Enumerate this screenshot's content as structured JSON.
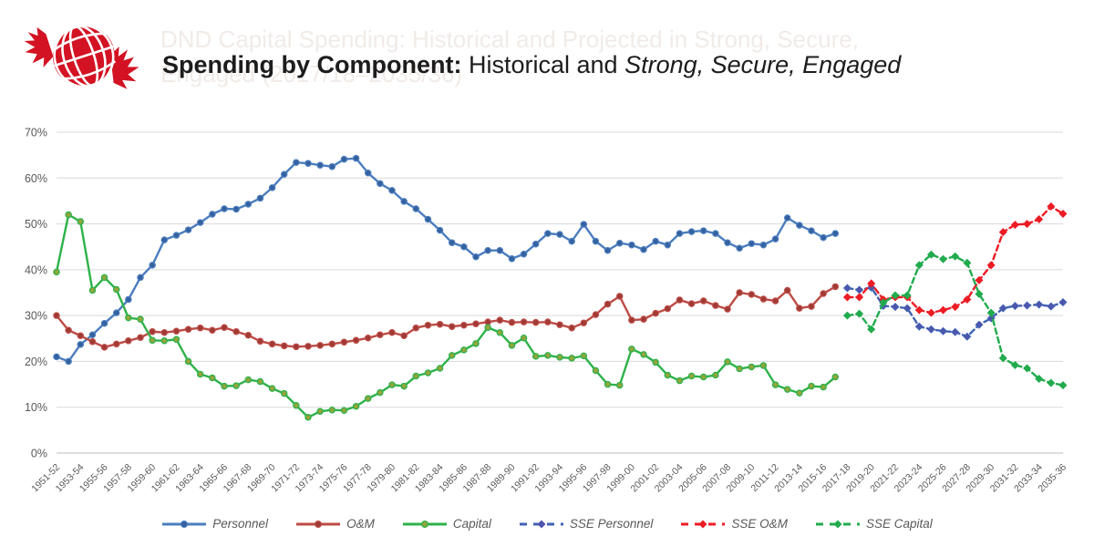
{
  "header": {
    "logo_name": "globe-maple-leaf-logo",
    "ghost_title_line1": "DND Capital Spending: Historical and Projected in Strong, Secure,",
    "ghost_title_line2": "Engaged (2017/18–2035/36)",
    "title_bold": "Spending by Component:",
    "title_regular": " Historical and ",
    "title_italic": "Strong, Secure, Engaged"
  },
  "chart_data": {
    "type": "line",
    "title": "Spending by Component: Historical and Strong, Secure, Engaged",
    "y_axis": {
      "min": 0,
      "max": 70,
      "step": 10,
      "grid": true,
      "tick_labels": [
        "0%",
        "10%",
        "20%",
        "30%",
        "40%",
        "50%",
        "60%",
        "70%"
      ]
    },
    "x_axis": {
      "total_points": 85,
      "points_per_tick": 2,
      "tick_labels": [
        "1951-52",
        "1953-54",
        "1955-56",
        "1957-58",
        "1959-60",
        "1961-62",
        "1963-64",
        "1965-66",
        "1967-68",
        "1969-70",
        "1971-72",
        "1973-74",
        "1975-76",
        "1977-78",
        "1979-80",
        "1981-82",
        "1983-84",
        "1985-86",
        "1987-88",
        "1989-90",
        "1991-92",
        "1993-94",
        "1995-96",
        "1997-98",
        "1999-00",
        "2001-02",
        "2003-04",
        "2005-06",
        "2007-08",
        "2009-10",
        "2011-12",
        "2013-14",
        "2015-16",
        "2017-18",
        "2019-20",
        "2021-22",
        "2023-24",
        "2025-26",
        "2027-28",
        "2029-30",
        "2031-32",
        "2033-34",
        "2035-36"
      ]
    },
    "legend_position": "bottom",
    "series": [
      {
        "name": "Personnel",
        "color": "#4a7dbe",
        "marker_fill": "#35609e",
        "style": "solid",
        "marker": "circle",
        "start_index": 0,
        "values": [
          21,
          20,
          23.7,
          25.8,
          28.3,
          30.6,
          33.5,
          38.3,
          41,
          46.5,
          47.5,
          48.7,
          50.3,
          52.1,
          53.3,
          53.2,
          54.3,
          55.6,
          57.9,
          60.8,
          63.4,
          63.2,
          62.8,
          62.5,
          64.1,
          64.3,
          61.1,
          58.8,
          57.3,
          54.9,
          53.3,
          51,
          48.6,
          45.9,
          45,
          42.8,
          44.2,
          44.2,
          42.4,
          43.4,
          45.6,
          47.9,
          47.7,
          46.2,
          49.9,
          46.2,
          44.2,
          45.8,
          45.4,
          44.4,
          46.2,
          45.4,
          47.9,
          48.3,
          48.5,
          47.9,
          45.9,
          44.7,
          45.7,
          45.4,
          46.7,
          51.3,
          49.7,
          48.5,
          47,
          47.9
        ]
      },
      {
        "name": "O&M",
        "color": "#bd4b45",
        "marker_fill": "#9e3a36",
        "style": "solid",
        "marker": "circle",
        "start_index": 0,
        "values": [
          30,
          26.8,
          25.6,
          24.3,
          23.1,
          23.8,
          24.5,
          25.2,
          26.5,
          26.3,
          26.6,
          27,
          27.3,
          26.8,
          27.4,
          26.5,
          25.7,
          24.4,
          23.8,
          23.4,
          23.2,
          23.3,
          23.5,
          23.8,
          24.2,
          24.6,
          25.1,
          25.8,
          26.3,
          25.6,
          27.3,
          27.9,
          28.1,
          27.6,
          27.9,
          28.2,
          28.6,
          29,
          28.5,
          28.6,
          28.5,
          28.6,
          28,
          27.3,
          28.4,
          30.2,
          32.5,
          34.2,
          29,
          29.2,
          30.5,
          31.5,
          33.4,
          32.6,
          33.2,
          32.2,
          31.4,
          35,
          34.6,
          33.6,
          33.2,
          35.5,
          31.6,
          32,
          34.8,
          36.3
        ]
      },
      {
        "name": "Capital",
        "color": "#2db24a",
        "marker_fill": "#93a53d",
        "style": "solid",
        "marker": "circle",
        "start_index": 0,
        "values": [
          39.5,
          52,
          50.5,
          35.5,
          38.3,
          35.7,
          29.5,
          29.2,
          24.6,
          24.5,
          24.8,
          20,
          17.2,
          16.4,
          14.6,
          14.7,
          16,
          15.6,
          14.1,
          13,
          10.4,
          7.8,
          9.1,
          9.4,
          9.3,
          10.2,
          11.9,
          13.2,
          14.9,
          14.6,
          16.8,
          17.5,
          18.5,
          21.3,
          22.5,
          23.9,
          27.4,
          26.3,
          23.5,
          25.1,
          21.1,
          21.3,
          20.9,
          20.7,
          21.2,
          18,
          15,
          14.8,
          22.7,
          21.5,
          19.8,
          17,
          15.8,
          16.8,
          16.6,
          17,
          19.9,
          18.4,
          18.8,
          19.1,
          14.9,
          13.9,
          13.1,
          14.6,
          14.4,
          16.6
        ]
      },
      {
        "name": "SSE Personnel",
        "color": "#3f62b5",
        "marker_fill": "#4f55ab",
        "style": "dashed",
        "marker": "diamond",
        "start_index": 66,
        "values": [
          36,
          35.6,
          36.1,
          32.1,
          31.9,
          31.6,
          27.6,
          27,
          26.6,
          26.4,
          25.4,
          28,
          29.4,
          31.6,
          32.1,
          32.2,
          32.4,
          32,
          32.9
        ]
      },
      {
        "name": "SSE O&M",
        "color": "#ec1c24",
        "marker_fill": "#ec1c24",
        "style": "dashed",
        "marker": "diamond",
        "start_index": 66,
        "values": [
          34,
          34,
          37,
          33.5,
          34,
          34,
          31.2,
          30.6,
          31.2,
          31.9,
          33.5,
          37.7,
          41,
          48.2,
          49.8,
          50,
          51,
          53.8,
          52.2
        ]
      },
      {
        "name": "SSE Capital",
        "color": "#21ab4d",
        "marker_fill": "#21ab4d",
        "style": "dashed",
        "marker": "diamond",
        "start_index": 66,
        "values": [
          30,
          30.4,
          27,
          32.8,
          34.4,
          34.4,
          41,
          43.3,
          42.3,
          42.9,
          41.5,
          34.7,
          30.6,
          20.7,
          19.2,
          18.5,
          16.2,
          15.3,
          14.8
        ]
      }
    ]
  }
}
